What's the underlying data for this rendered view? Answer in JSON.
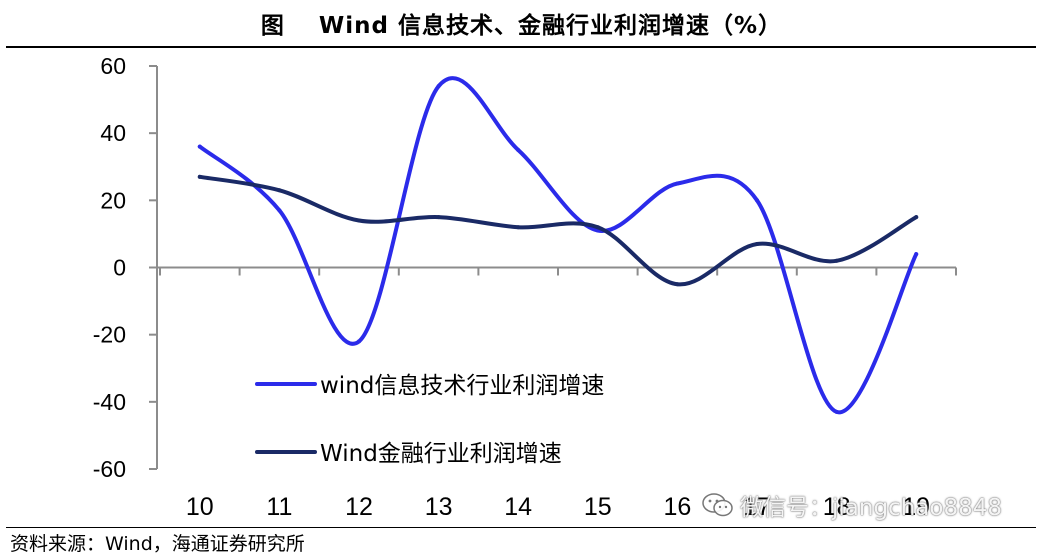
{
  "header": {
    "prefix": "图",
    "title": "Wind 信息技术、金融行业利润增速（%）"
  },
  "source": "资料来源：Wind，海通证券研究所",
  "watermark": "微信号：jiangchao8848",
  "colors": {
    "it_series": "#2b2bea",
    "finance_series": "#1a2a66",
    "axis": "#8c8c8c"
  },
  "chart_data": {
    "type": "line",
    "title": "Wind 信息技术、金融行业利润增速（%）",
    "x": [
      "10",
      "11",
      "12",
      "13",
      "14",
      "15",
      "16",
      "17",
      "18",
      "19"
    ],
    "ylim": [
      -60,
      60
    ],
    "yticks": [
      60,
      40,
      20,
      0,
      -20,
      -40,
      -60
    ],
    "legend_position": "bottom-left",
    "grid": false,
    "series": [
      {
        "name": "wind信息技术行业利润增速",
        "color": "#2b2bea",
        "values": [
          36,
          17,
          -22,
          54,
          35,
          11,
          25,
          20,
          -43,
          4
        ]
      },
      {
        "name": "Wind金融行业利润增速",
        "color": "#1a2a66",
        "values": [
          27,
          23,
          14,
          15,
          12,
          12,
          -5,
          7,
          2,
          15
        ]
      }
    ]
  }
}
